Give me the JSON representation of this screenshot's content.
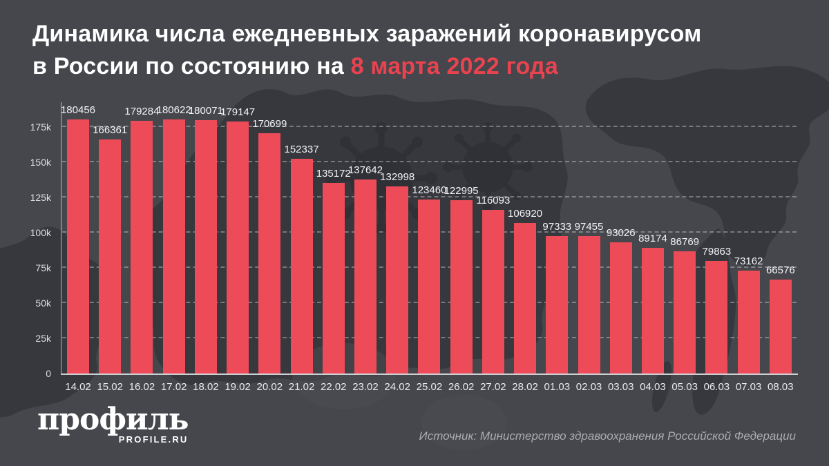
{
  "title": {
    "line1": "Динамика числа ежедневных заражений коронавирусом",
    "line2_prefix": "в России по состоянию на ",
    "line2_highlight": "8 марта 2022 года"
  },
  "chart_data": {
    "type": "bar",
    "title": "Динамика числа ежедневных заражений коронавирусом в России по состоянию на 8 марта 2022 года",
    "categories": [
      "14.02",
      "15.02",
      "16.02",
      "17.02",
      "18.02",
      "19.02",
      "20.02",
      "21.02",
      "22.02",
      "23.02",
      "24.02",
      "25.02",
      "26.02",
      "27.02",
      "28.02",
      "01.03",
      "02.03",
      "03.03",
      "04.03",
      "05.03",
      "06.03",
      "07.03",
      "08.03"
    ],
    "values": [
      180456,
      166361,
      179284,
      180622,
      180071,
      179147,
      170699,
      152337,
      135172,
      137642,
      132998,
      123460,
      122995,
      116093,
      106920,
      97333,
      97455,
      93026,
      89174,
      86769,
      79863,
      73162,
      66576
    ],
    "y_ticks": [
      {
        "v": 0,
        "label": "0"
      },
      {
        "v": 25000,
        "label": "25k"
      },
      {
        "v": 50000,
        "label": "50k"
      },
      {
        "v": 75000,
        "label": "75k"
      },
      {
        "v": 100000,
        "label": "100k"
      },
      {
        "v": 125000,
        "label": "125k"
      },
      {
        "v": 150000,
        "label": "150k"
      },
      {
        "v": 175000,
        "label": "175k"
      }
    ],
    "ylim": [
      0,
      191000
    ],
    "xlabel": "",
    "ylabel": "",
    "grid": "horizontal-dashed",
    "legend": false,
    "value_labels": true,
    "bar_color": "#ee4b58"
  },
  "footer": {
    "logo_main": "профиль",
    "logo_sub": "PROFILE.RU",
    "source": "Источник: Министерство здравоохранения Российской Федерации"
  },
  "colors": {
    "background": "#45474d",
    "map_silhouette": "#36383e",
    "virus_doodle": "#2f3137",
    "bar": "#ee4b58",
    "title_highlight": "#ea4350",
    "text": "#ffffff",
    "muted_text": "#abacae"
  }
}
